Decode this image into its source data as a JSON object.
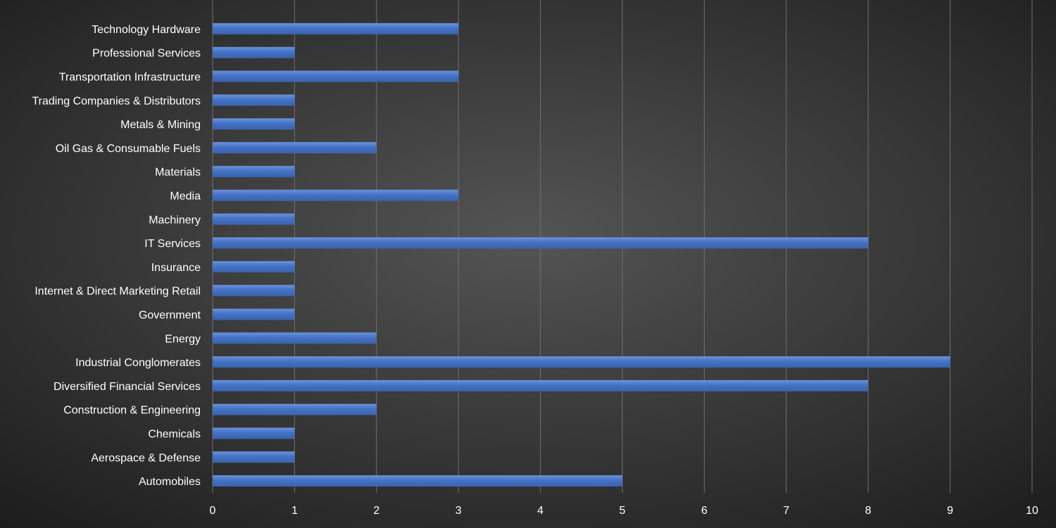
{
  "chart_data": {
    "type": "bar",
    "orientation": "horizontal",
    "title": "",
    "xlabel": "",
    "ylabel": "",
    "categories": [
      "Technology Hardware",
      "Professional Services",
      "Transportation Infrastructure",
      "Trading Companies & Distributors",
      "Metals & Mining",
      "Oil Gas & Consumable Fuels",
      "Materials ",
      "Media",
      "Machinery",
      "IT Services",
      "Insurance",
      "Internet & Direct Marketing Retail",
      "Government",
      "Energy",
      "Industrial Conglomerates",
      "Diversified Financial Services",
      "Construction & Engineering",
      "Chemicals",
      "Aerospace & Defense",
      "Automobiles"
    ],
    "values": [
      3,
      1,
      3,
      1,
      1,
      2,
      1,
      3,
      1,
      8,
      1,
      1,
      1,
      2,
      9,
      8,
      2,
      1,
      1,
      5
    ],
    "xlim": [
      0,
      10
    ],
    "x_ticks": [
      "0",
      "1",
      "2",
      "3",
      "4",
      "5",
      "6",
      "7",
      "8",
      "9",
      "10"
    ],
    "grid": "vertical",
    "legend": "none",
    "colors": {
      "bar": "#4472c4",
      "bar_highlight": "#6a93dc",
      "background_center": "#545454",
      "background_edge": "#1c1c1c",
      "gridline": "#6f6f6f",
      "text": "#ffffff"
    }
  }
}
